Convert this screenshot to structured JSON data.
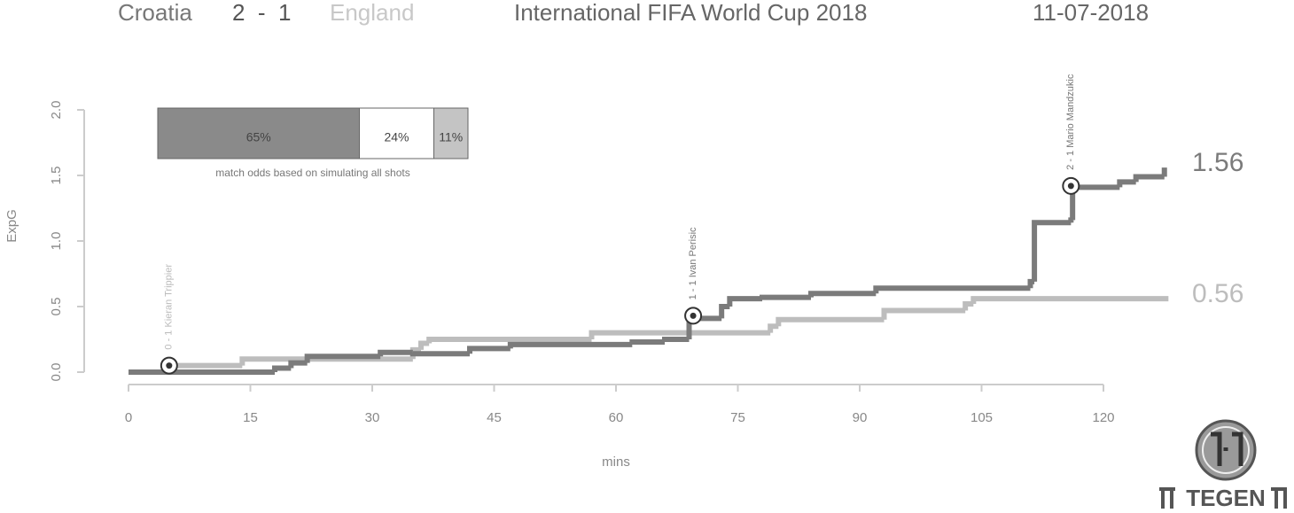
{
  "header": {
    "home": "Croatia",
    "score": "2  -  1",
    "away": "England",
    "competition": "International FIFA World Cup 2018",
    "date": "11-07-2018"
  },
  "chart_data": {
    "type": "step",
    "x_label": "mins",
    "y_label": "ExpG",
    "xlim": [
      0,
      120
    ],
    "xticks": [
      0,
      15,
      30,
      45,
      60,
      75,
      90,
      105,
      120
    ],
    "ylim": [
      0,
      2
    ],
    "yticks": [
      {
        "value": 0,
        "label": "0.0"
      },
      0.5,
      {
        "value": 1,
        "label": "1.0"
      },
      1.5,
      {
        "value": 2,
        "label": "2.0"
      }
    ],
    "series": [
      {
        "name": "Croatia",
        "color": "#7b7b7b",
        "x": [
          0,
          18,
          20,
          22,
          31,
          35,
          42,
          47,
          62,
          66,
          69,
          73,
          74,
          78,
          84,
          92,
          111,
          111.5,
          116,
          116.2,
          122,
          124,
          127.5
        ],
        "values": [
          0,
          0.03,
          0.07,
          0.12,
          0.15,
          0.14,
          0.18,
          0.21,
          0.23,
          0.25,
          0.41,
          0.5,
          0.56,
          0.57,
          0.6,
          0.64,
          0.69,
          1.14,
          1.16,
          1.41,
          1.45,
          1.49,
          1.56
        ]
      },
      {
        "name": "England",
        "color": "#bdbdbd",
        "x": [
          0,
          5,
          14,
          35,
          36,
          37,
          57,
          72,
          79,
          80,
          93,
          103,
          104,
          128
        ],
        "values": [
          0,
          0.05,
          0.1,
          0.17,
          0.22,
          0.25,
          0.3,
          0.3,
          0.35,
          0.4,
          0.47,
          0.52,
          0.56,
          0.56
        ]
      }
    ],
    "goals": [
      {
        "label": "0 - 1 Kieran Trippier",
        "x": 5,
        "y": 0.05,
        "color": "#bdbdbd"
      },
      {
        "label": "1 - 1 Ivan Perisic",
        "x": 69.5,
        "y": 0.43,
        "color": "#7b7b7b"
      },
      {
        "label": "2 - 1 Mario Mandzukic",
        "x": 116,
        "y": 1.42,
        "color": "#7b7b7b"
      }
    ],
    "odds": {
      "values": [
        65,
        24,
        11
      ],
      "value_labels": [
        "65%",
        "24%",
        "11%"
      ],
      "colors": [
        "#8a8a8a",
        "#ffffff",
        "#c4c4c4"
      ],
      "caption": "match odds based on simulating all shots"
    }
  },
  "logo": {
    "text": "TEGEN"
  }
}
